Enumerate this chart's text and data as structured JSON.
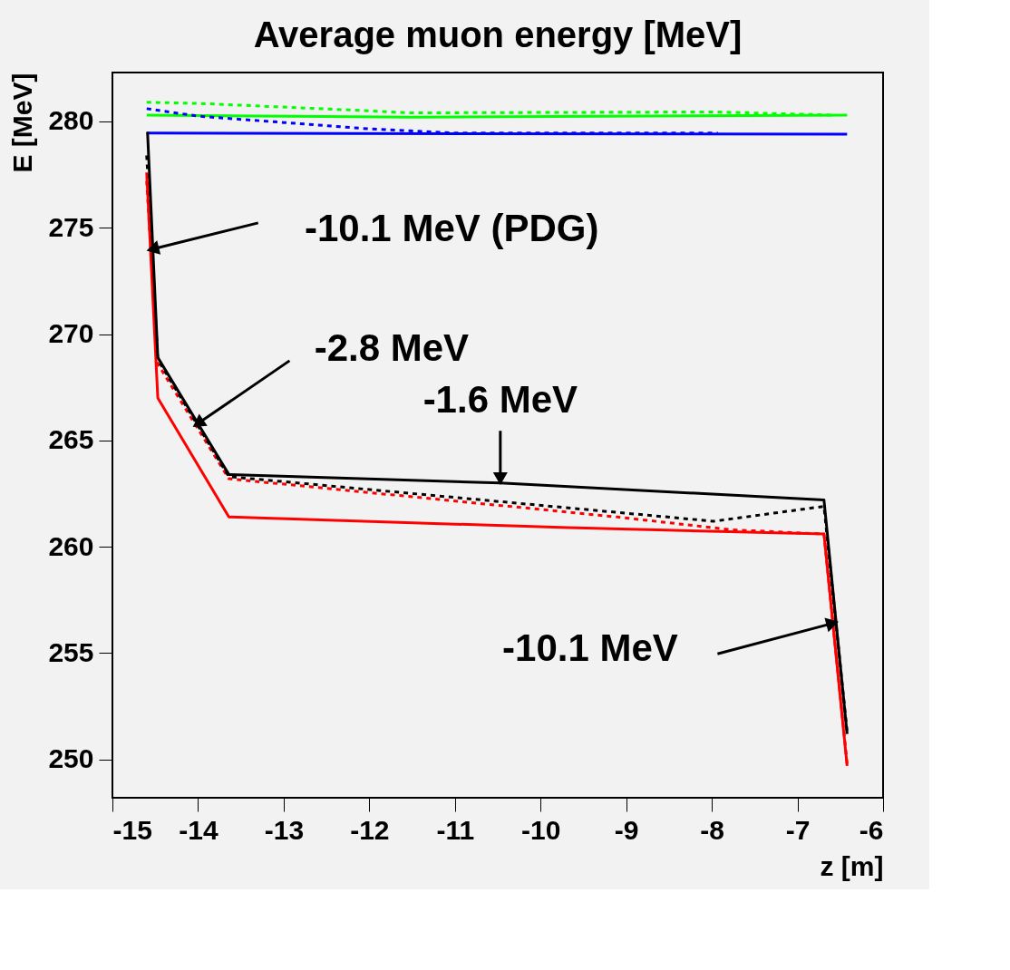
{
  "chart_data": {
    "type": "line",
    "title": "Average muon energy [MeV]",
    "xlabel": "z [m]",
    "ylabel": "E [MeV]",
    "xlim": [
      -15,
      -6
    ],
    "ylim": [
      248.2,
      282.3
    ],
    "xticks": [
      -15,
      -14,
      -13,
      -12,
      -11,
      -10,
      -9,
      -8,
      -7,
      -6
    ],
    "yticks": [
      250,
      255,
      260,
      265,
      270,
      275,
      280
    ],
    "grid": false,
    "series": [
      {
        "color": "#00ff00",
        "line_style": "dotted",
        "x": [
          -14.6,
          -14.0,
          -12.0,
          -11.5,
          -8.0,
          -6.6
        ],
        "values": [
          280.9,
          280.85,
          280.5,
          280.4,
          280.45,
          280.3
        ]
      },
      {
        "color": "#00ff00",
        "line_style": "solid",
        "x": [
          -14.6,
          -11.5,
          -6.42
        ],
        "values": [
          280.3,
          280.2,
          280.3
        ]
      },
      {
        "color": "#0000ff",
        "line_style": "dotted",
        "x": [
          -14.6,
          -14.0,
          -13.0,
          -12.0,
          -11.0,
          -7.93
        ],
        "values": [
          280.6,
          280.25,
          279.95,
          279.65,
          279.45,
          279.45
        ]
      },
      {
        "color": "#0000ff",
        "line_style": "solid",
        "x": [
          -14.6,
          -6.42
        ],
        "values": [
          279.45,
          279.4
        ]
      },
      {
        "color": "#ff0000",
        "line_style": "dotted",
        "x": [
          -14.6,
          -14.47,
          -13.64,
          -9.1,
          -7.77,
          -6.69,
          -6.42
        ],
        "values": [
          277.2,
          268.6,
          263.2,
          261.4,
          260.8,
          260.6,
          249.8
        ]
      },
      {
        "color": "#000000",
        "line_style": "dotted",
        "x": [
          -14.6,
          -14.47,
          -13.64,
          -7.98,
          -6.69,
          -6.42
        ],
        "values": [
          278.4,
          268.8,
          263.3,
          261.2,
          261.9,
          251.3
        ]
      },
      {
        "color": "#ff0000",
        "line_style": "solid",
        "x": [
          -14.6,
          -14.47,
          -13.64,
          -9.68,
          -6.69,
          -6.42
        ],
        "values": [
          277.6,
          267.0,
          261.4,
          260.9,
          260.6,
          249.7
        ]
      },
      {
        "color": "#000000",
        "line_style": "solid",
        "x": [
          -14.59,
          -14.47,
          -13.64,
          -10.47,
          -6.69,
          -6.42
        ],
        "values": [
          279.5,
          268.9,
          263.4,
          263.0,
          262.2,
          251.2
        ]
      }
    ],
    "annotations": [
      {
        "text": "-10.1 MeV (PDG)",
        "x": -14.53,
        "y": 274.0
      },
      {
        "text": "-2.8 MeV",
        "x": -14.0,
        "y": 265.8
      },
      {
        "text": "-1.6 MeV",
        "x": -10.47,
        "y": 263.2
      },
      {
        "text": "-10.1 MeV",
        "x": -6.59,
        "y": 256.4
      }
    ]
  }
}
